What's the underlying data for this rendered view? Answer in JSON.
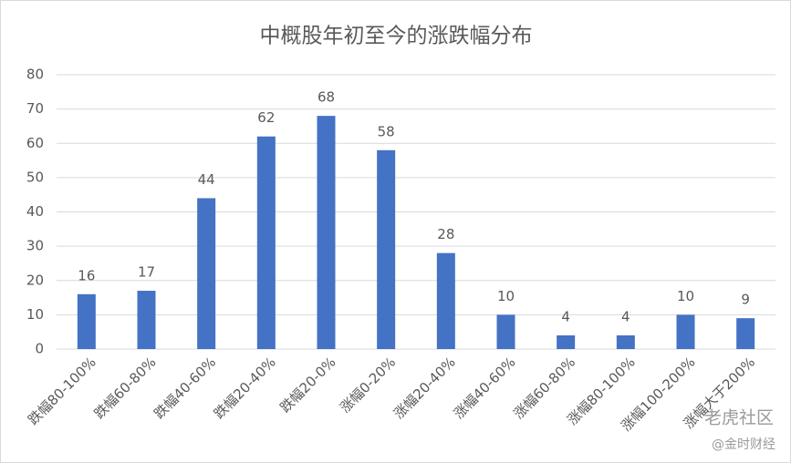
{
  "chart_data": {
    "type": "bar",
    "title": "中概股年初至今的涨跌幅分布",
    "categories": [
      "跌幅80-100%",
      "跌幅60-80%",
      "跌幅40-60%",
      "跌幅20-40%",
      "跌幅20-0%",
      "涨幅0-20%",
      "涨幅20-40%",
      "涨幅40-60%",
      "涨幅60-80%",
      "涨幅80-100%",
      "涨幅100-200%",
      "涨幅大于200%"
    ],
    "values": [
      16,
      17,
      44,
      62,
      68,
      58,
      28,
      10,
      4,
      4,
      10,
      9
    ],
    "color": "#4472c4",
    "ylim": [
      0,
      80
    ],
    "yticks": [
      0,
      10,
      20,
      30,
      40,
      50,
      60,
      70,
      80
    ],
    "grid": true,
    "watermarks": [
      "老虎社区",
      "@金时财经"
    ]
  }
}
